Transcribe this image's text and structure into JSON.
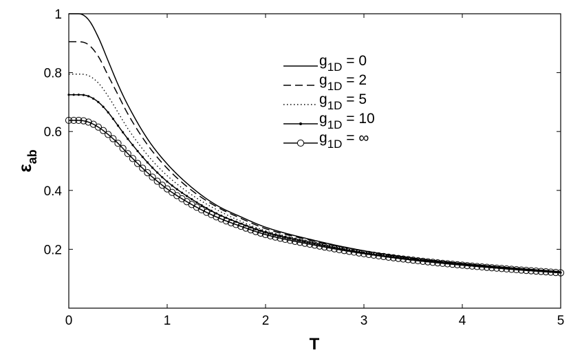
{
  "chart_data": {
    "type": "line",
    "title": "",
    "xlabel": "T",
    "ylabel": {
      "base": "ε",
      "sub": "ab"
    },
    "xlim": [
      0,
      5
    ],
    "ylim": [
      0,
      1
    ],
    "xticks": [
      0,
      1,
      2,
      3,
      4,
      5
    ],
    "yticks": [
      0.2,
      0.4,
      0.6,
      0.8,
      1
    ],
    "xtick_labels": [
      "0",
      "1",
      "2",
      "3",
      "4",
      "5"
    ],
    "ytick_labels": [
      "0.2",
      "0.4",
      "0.6",
      "0.8",
      "1"
    ],
    "grid": false,
    "legend": {
      "position": "top-right",
      "entries": [
        {
          "base": "g",
          "sub": "1D",
          "value": "0"
        },
        {
          "base": "g",
          "sub": "1D",
          "value": "2"
        },
        {
          "base": "g",
          "sub": "1D",
          "value": "5"
        },
        {
          "base": "g",
          "sub": "1D",
          "value": "10"
        },
        {
          "base": "g",
          "sub": "1D",
          "value": "∞"
        }
      ]
    },
    "x": [
      0,
      0.1,
      0.2,
      0.3,
      0.4,
      0.5,
      0.6,
      0.8,
      1.0,
      1.25,
      1.5,
      1.75,
      2.0,
      2.5,
      3.0,
      3.5,
      4.0,
      4.5,
      5.0
    ],
    "series": [
      {
        "name": "g1D = 0",
        "style": "solid",
        "marker": "none",
        "values": [
          1.0,
          1.0,
          0.98,
          0.92,
          0.84,
          0.76,
          0.69,
          0.575,
          0.49,
          0.41,
          0.35,
          0.31,
          0.275,
          0.23,
          0.195,
          0.17,
          0.152,
          0.137,
          0.124
        ]
      },
      {
        "name": "g1D = 2",
        "style": "dashed",
        "marker": "none",
        "values": [
          0.905,
          0.905,
          0.895,
          0.855,
          0.79,
          0.725,
          0.66,
          0.555,
          0.475,
          0.4,
          0.345,
          0.305,
          0.27,
          0.228,
          0.194,
          0.169,
          0.151,
          0.136,
          0.123
        ]
      },
      {
        "name": "g1D = 5",
        "style": "dotted",
        "marker": "none",
        "values": [
          0.795,
          0.795,
          0.79,
          0.765,
          0.72,
          0.665,
          0.61,
          0.52,
          0.45,
          0.385,
          0.335,
          0.295,
          0.263,
          0.224,
          0.191,
          0.167,
          0.15,
          0.135,
          0.122
        ]
      },
      {
        "name": "g1D = 10",
        "style": "solid",
        "marker": "dot",
        "values": [
          0.725,
          0.725,
          0.72,
          0.7,
          0.665,
          0.62,
          0.575,
          0.495,
          0.43,
          0.37,
          0.322,
          0.287,
          0.257,
          0.219,
          0.188,
          0.165,
          0.148,
          0.134,
          0.121
        ]
      },
      {
        "name": "g1D = ∞",
        "style": "solid",
        "marker": "circle",
        "values": [
          0.638,
          0.638,
          0.632,
          0.615,
          0.59,
          0.56,
          0.525,
          0.46,
          0.405,
          0.352,
          0.31,
          0.278,
          0.25,
          0.214,
          0.185,
          0.163,
          0.146,
          0.132,
          0.12
        ]
      }
    ]
  }
}
